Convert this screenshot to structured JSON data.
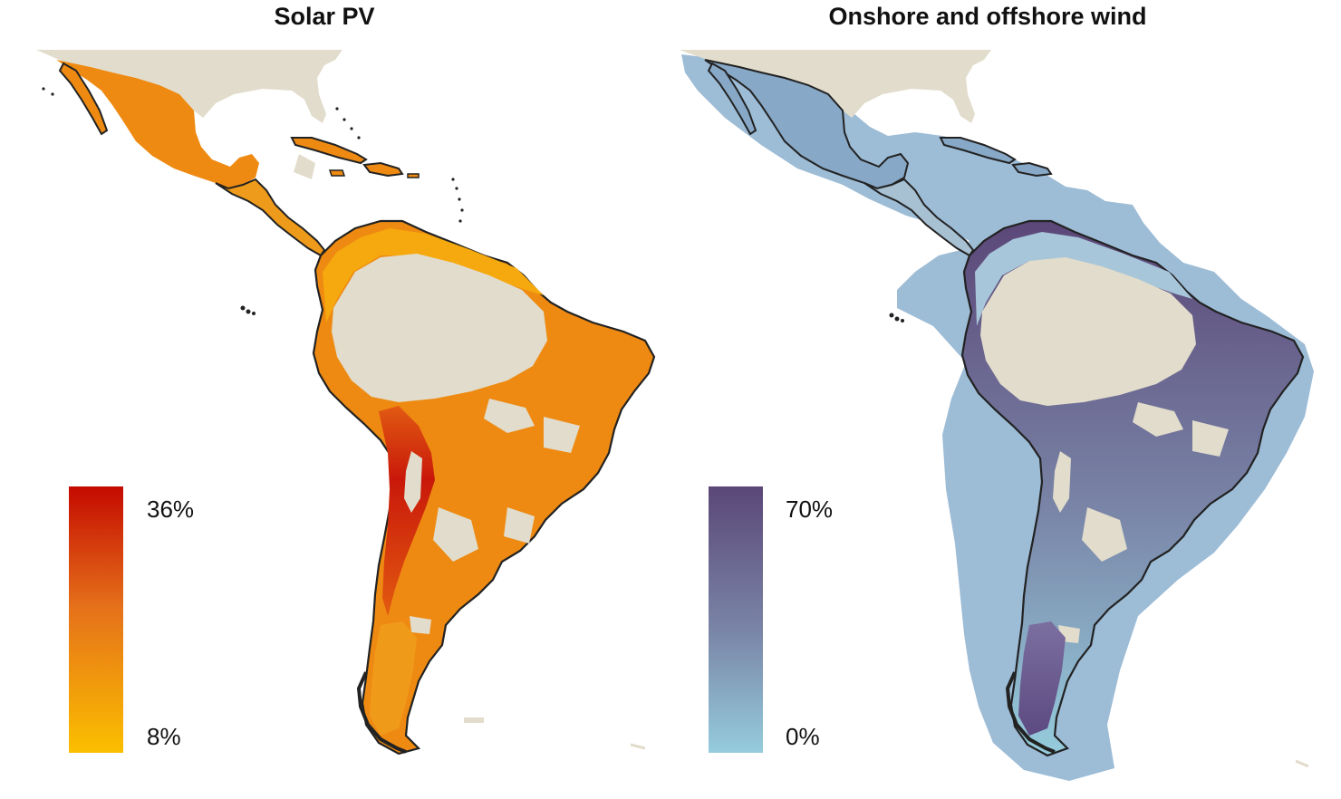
{
  "panels": [
    {
      "title": "Solar PV",
      "legend": {
        "max_label": "36%",
        "min_label": "8%",
        "color_high": "#C40A00",
        "color_mid": "#E5701A",
        "color_low": "#FBBF00"
      }
    },
    {
      "title": "Onshore and offshore wind",
      "legend": {
        "max_label": "70%",
        "min_label": "0%",
        "color_high": "#5B4778",
        "color_mid": "#7A86A8",
        "color_low": "#95CCDC"
      }
    }
  ],
  "colors": {
    "land_neutral": "#E1DCCB",
    "border": "#222222",
    "solar_fill": "#EE8A12",
    "wind_fill": "#7FA2C2",
    "wind_offshore": "#9DBCD6"
  }
}
